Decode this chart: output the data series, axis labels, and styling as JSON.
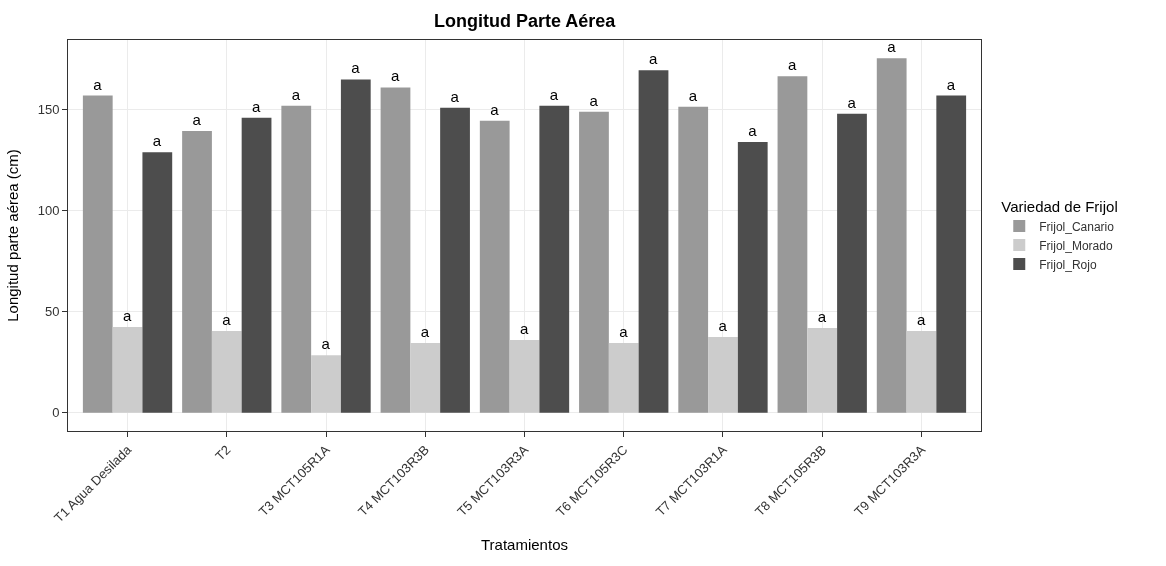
{
  "chart_data": {
    "type": "bar",
    "title": "Longitud Parte Aérea",
    "xlabel": "Tratamientos",
    "ylabel": "Longitud parte aérea (cm)",
    "legend_title": "Variedad de Frijol",
    "categories": [
      "T1 Agua Desilada",
      "T2",
      "T3 MCT105R1A",
      "T4 MCT103R3B",
      "T5 MCT103R3A",
      "T6 MCT105R3C",
      "T7 MCT103R1A",
      "T8 MCT105R3B",
      "T9 MCT103R3A"
    ],
    "series": [
      {
        "name": "Frijol_Canario",
        "color": "#999999",
        "values": [
          157,
          139.5,
          152,
          161,
          144.5,
          149,
          151.5,
          166.5,
          175.5
        ],
        "value_labels": [
          "a",
          "a",
          "a",
          "a",
          "a",
          "a",
          "a",
          "a",
          "a"
        ]
      },
      {
        "name": "Frijol_Morado",
        "color": "#cccccc",
        "values": [
          42.5,
          40.5,
          28.5,
          34.5,
          36,
          34.5,
          37.5,
          42,
          40.5
        ],
        "value_labels": [
          "a",
          "a",
          "a",
          "a",
          "a",
          "a",
          "a",
          "a",
          "a"
        ]
      },
      {
        "name": "Frijol_Rojo",
        "color": "#4d4d4d",
        "values": [
          129,
          146,
          165,
          151,
          152,
          169.5,
          134,
          148,
          157
        ],
        "value_labels": [
          "a",
          "a",
          "a",
          "a",
          "a",
          "a",
          "a",
          "a",
          "a"
        ]
      }
    ],
    "ylim": [
      -9,
      184.5
    ],
    "yticks": [
      0,
      50,
      100,
      150
    ],
    "grid": true,
    "legend": "right"
  }
}
